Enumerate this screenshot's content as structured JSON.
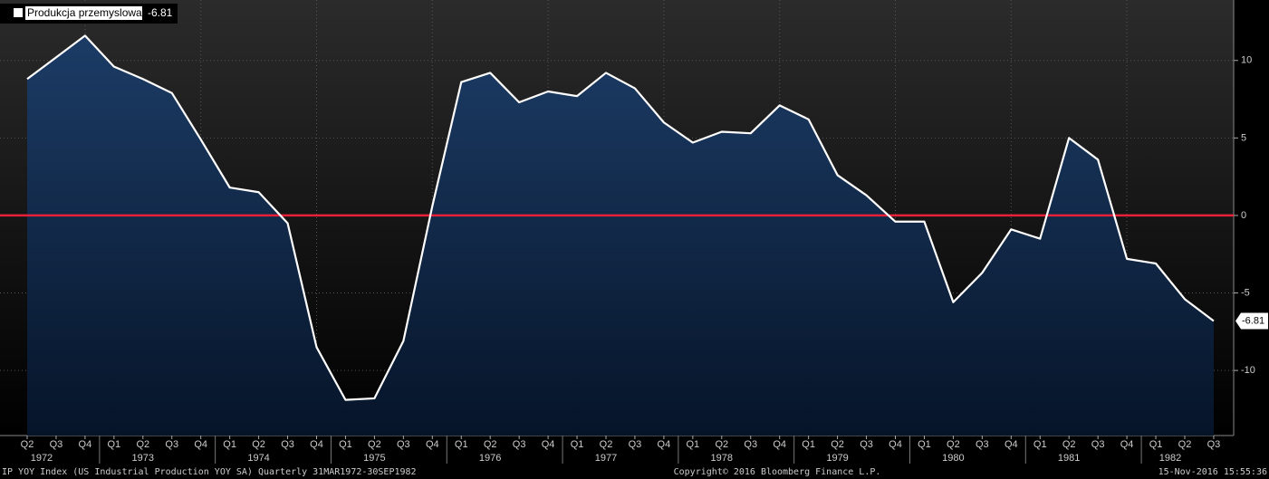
{
  "chart_data": {
    "type": "area",
    "legend_value": -6.81,
    "categories": [
      "Q2",
      "Q3",
      "Q4",
      "Q1",
      "Q2",
      "Q3",
      "Q4",
      "Q1",
      "Q2",
      "Q3",
      "Q4",
      "Q1",
      "Q2",
      "Q3",
      "Q4",
      "Q1",
      "Q2",
      "Q3",
      "Q4",
      "Q1",
      "Q2",
      "Q3",
      "Q4",
      "Q1",
      "Q2",
      "Q3",
      "Q4",
      "Q1",
      "Q2",
      "Q3",
      "Q4",
      "Q1",
      "Q2",
      "Q3",
      "Q4",
      "Q1",
      "Q2",
      "Q3",
      "Q4",
      "Q1",
      "Q2",
      "Q3"
    ],
    "years": [
      "1972",
      "1973",
      "1974",
      "1975",
      "1976",
      "1977",
      "1978",
      "1979",
      "1980",
      "1981",
      "1982"
    ],
    "series": [
      {
        "name": "Produkcja przemyslowa",
        "color": "#ffffff",
        "values": [
          8.8,
          10.2,
          11.6,
          9.6,
          8.8,
          7.9,
          4.9,
          1.8,
          1.5,
          -0.5,
          -8.5,
          -11.9,
          -11.8,
          -8.1,
          0.6,
          8.6,
          9.2,
          7.3,
          8.0,
          7.7,
          9.2,
          8.2,
          6.0,
          4.7,
          5.4,
          5.3,
          7.1,
          6.2,
          2.6,
          1.3,
          -0.4,
          -0.4,
          -5.6,
          -3.7,
          -0.9,
          -1.5,
          5.0,
          3.6,
          -2.8,
          -3.1,
          -5.4,
          -6.81
        ]
      }
    ],
    "ylim": [
      -14.2,
      13.9
    ],
    "yticks": [
      -10,
      -5,
      0,
      5,
      10
    ],
    "grid": true,
    "reference_line": {
      "value": 0,
      "color": "#e8203a"
    },
    "footer": {
      "left": "IP YOY Index (US Industrial Production YOY SA)  Quarterly 31MAR1972-30SEP1982",
      "center": "Copyright© 2016 Bloomberg Finance L.P.",
      "right": "15-Nov-2016 15:55:36"
    }
  }
}
